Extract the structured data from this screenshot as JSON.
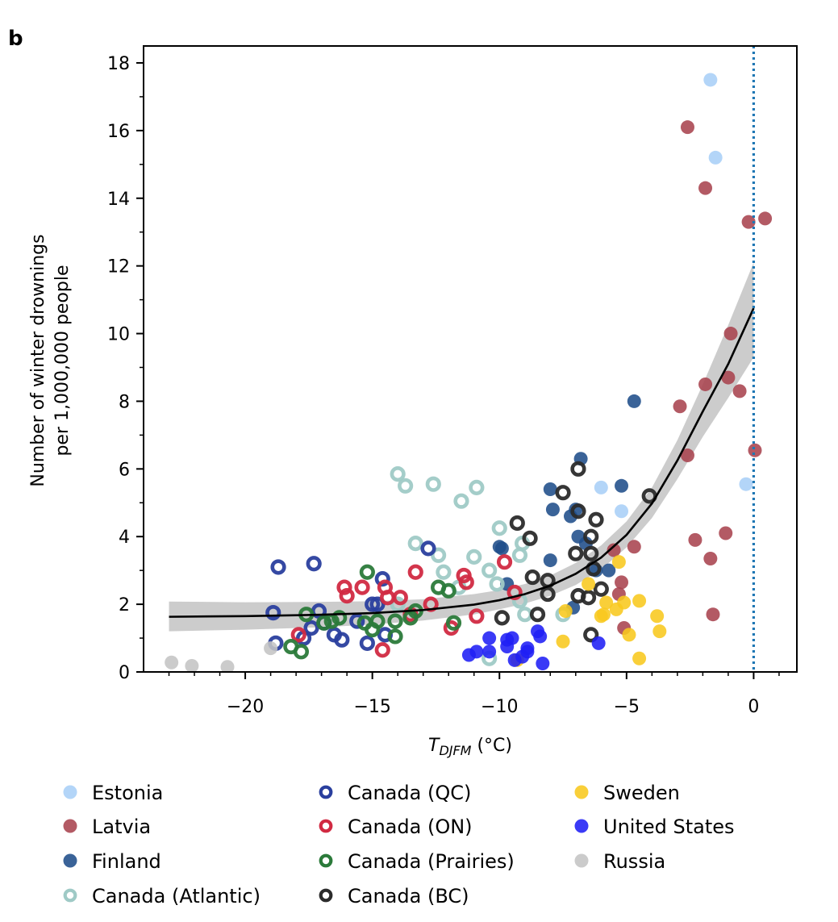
{
  "panel_label": "b",
  "chart_data": {
    "type": "scatter",
    "xlabel_main": "T",
    "xlabel_sub": "DJFM",
    "xlabel_unit": " (°C)",
    "ylabel_line1": "Number of winter drownings",
    "ylabel_line2": "per 1,000,000 people",
    "xlim": [
      -24.0,
      1.7
    ],
    "ylim": [
      0,
      18.5
    ],
    "xticks": [
      -20,
      -15,
      -10,
      -5,
      0
    ],
    "xtick_labels": [
      "−20",
      "−15",
      "−10",
      "−5",
      "0"
    ],
    "yticks": [
      0,
      2,
      4,
      6,
      8,
      10,
      12,
      14,
      16,
      18
    ],
    "ytick_labels": [
      "0",
      "2",
      "4",
      "6",
      "8",
      "10",
      "12",
      "14",
      "16",
      "18"
    ],
    "grid": false,
    "legend_position": "bottom",
    "vline": {
      "x": 0,
      "color": "#1f77b4",
      "style": "dotted"
    },
    "fit": {
      "color": "#000000",
      "band_color": "#cccccc",
      "x": [
        -23,
        -20,
        -17,
        -15,
        -13,
        -11,
        -10,
        -9,
        -8,
        -7,
        -6,
        -5,
        -4,
        -3,
        -2,
        -1,
        0
      ],
      "y": [
        1.63,
        1.65,
        1.69,
        1.74,
        1.83,
        1.99,
        2.12,
        2.3,
        2.55,
        2.9,
        3.38,
        4.05,
        4.98,
        6.25,
        7.7,
        9.1,
        10.75
      ],
      "lower": [
        1.2,
        1.25,
        1.32,
        1.4,
        1.52,
        1.7,
        1.85,
        2.02,
        2.25,
        2.57,
        3.03,
        3.68,
        4.55,
        5.7,
        6.95,
        8.1,
        9.3
      ],
      "upper": [
        2.08,
        2.06,
        2.07,
        2.09,
        2.15,
        2.3,
        2.42,
        2.6,
        2.85,
        3.22,
        3.74,
        4.45,
        5.45,
        6.85,
        8.5,
        10.25,
        12.1
      ]
    },
    "series": [
      {
        "name": "Estonia",
        "color": "#a9cff7",
        "marker": "filled",
        "points": [
          [
            -1.7,
            17.5
          ],
          [
            -1.5,
            15.2
          ],
          [
            -0.3,
            5.55
          ],
          [
            -6.0,
            5.45
          ],
          [
            -5.2,
            4.75
          ]
        ]
      },
      {
        "name": "Latvia",
        "color": "#a8434e",
        "marker": "filled",
        "points": [
          [
            -2.6,
            16.1
          ],
          [
            -1.9,
            14.3
          ],
          [
            0.45,
            13.4
          ],
          [
            -0.2,
            13.3
          ],
          [
            -0.9,
            10.0
          ],
          [
            -1.0,
            8.7
          ],
          [
            -0.55,
            8.3
          ],
          [
            -1.9,
            8.5
          ],
          [
            -2.9,
            7.85
          ],
          [
            -2.6,
            6.4
          ],
          [
            0.05,
            6.55
          ],
          [
            -2.3,
            3.9
          ],
          [
            -1.1,
            4.1
          ],
          [
            -1.7,
            3.35
          ],
          [
            -4.7,
            3.7
          ],
          [
            -1.6,
            1.7
          ],
          [
            -5.2,
            2.65
          ],
          [
            -5.3,
            2.3
          ],
          [
            -5.1,
            1.3
          ],
          [
            -5.5,
            3.6
          ]
        ]
      },
      {
        "name": "Finland",
        "color": "#1f4d8a",
        "marker": "filled",
        "points": [
          [
            -4.7,
            8.0
          ],
          [
            -6.8,
            6.3
          ],
          [
            -8.0,
            5.4
          ],
          [
            -7.9,
            4.8
          ],
          [
            -7.2,
            4.6
          ],
          [
            -6.9,
            4.0
          ],
          [
            -9.9,
            3.65
          ],
          [
            -8.0,
            3.3
          ],
          [
            -10.0,
            3.7
          ],
          [
            -6.2,
            3.0
          ],
          [
            -5.2,
            5.5
          ],
          [
            -7.0,
            4.8
          ],
          [
            -6.6,
            3.8
          ],
          [
            -9.7,
            2.6
          ],
          [
            -7.1,
            1.9
          ],
          [
            -5.7,
            3.0
          ]
        ]
      },
      {
        "name": "Canada (Atlantic)",
        "color": "#9fcac6",
        "marker": "ring",
        "points": [
          [
            -14.0,
            5.85
          ],
          [
            -13.7,
            5.5
          ],
          [
            -12.6,
            5.55
          ],
          [
            -11.5,
            5.05
          ],
          [
            -10.9,
            5.45
          ],
          [
            -13.3,
            3.8
          ],
          [
            -12.4,
            3.45
          ],
          [
            -11.0,
            3.4
          ],
          [
            -10.0,
            4.25
          ],
          [
            -9.2,
            3.45
          ],
          [
            -10.4,
            3.0
          ],
          [
            -9.1,
            3.8
          ],
          [
            -12.2,
            2.95
          ],
          [
            -11.6,
            2.5
          ],
          [
            -10.1,
            2.6
          ],
          [
            -9.0,
            1.7
          ],
          [
            -9.2,
            2.1
          ],
          [
            -10.4,
            0.4
          ],
          [
            -7.5,
            1.7
          ],
          [
            -14.0,
            2.0
          ]
        ]
      },
      {
        "name": "Canada (QC)",
        "color": "#2a3f9e",
        "marker": "ring",
        "points": [
          [
            -18.7,
            3.1
          ],
          [
            -17.3,
            3.2
          ],
          [
            -18.9,
            1.75
          ],
          [
            -18.8,
            0.85
          ],
          [
            -17.1,
            1.8
          ],
          [
            -17.7,
            1.0
          ],
          [
            -16.5,
            1.1
          ],
          [
            -16.2,
            0.95
          ],
          [
            -15.2,
            0.85
          ],
          [
            -15.6,
            1.5
          ],
          [
            -15.0,
            2.0
          ],
          [
            -14.6,
            2.75
          ],
          [
            -14.8,
            2.0
          ],
          [
            -16.9,
            1.45
          ],
          [
            -12.8,
            3.65
          ],
          [
            -14.5,
            1.1
          ],
          [
            -17.4,
            1.3
          ]
        ]
      },
      {
        "name": "Canada (ON)",
        "color": "#d12a42",
        "marker": "ring",
        "points": [
          [
            -16.1,
            2.5
          ],
          [
            -15.4,
            2.5
          ],
          [
            -14.5,
            2.5
          ],
          [
            -14.4,
            2.2
          ],
          [
            -13.9,
            2.2
          ],
          [
            -13.3,
            2.95
          ],
          [
            -11.4,
            2.85
          ],
          [
            -11.3,
            2.65
          ],
          [
            -12.7,
            2.0
          ],
          [
            -11.9,
            1.3
          ],
          [
            -10.9,
            1.65
          ],
          [
            -9.8,
            3.25
          ],
          [
            -9.4,
            2.35
          ],
          [
            -14.6,
            0.65
          ],
          [
            -16.0,
            2.25
          ],
          [
            -13.5,
            1.7
          ],
          [
            -17.9,
            1.1
          ]
        ]
      },
      {
        "name": "Canada (Prairies)",
        "color": "#2b7a3a",
        "marker": "ring",
        "points": [
          [
            -15.2,
            2.95
          ],
          [
            -12.4,
            2.5
          ],
          [
            -12.0,
            2.4
          ],
          [
            -17.6,
            1.7
          ],
          [
            -16.9,
            1.45
          ],
          [
            -16.3,
            1.6
          ],
          [
            -15.3,
            1.45
          ],
          [
            -14.8,
            1.5
          ],
          [
            -14.1,
            1.5
          ],
          [
            -13.3,
            1.8
          ],
          [
            -13.5,
            1.6
          ],
          [
            -11.8,
            1.45
          ],
          [
            -17.8,
            0.6
          ],
          [
            -18.2,
            0.75
          ],
          [
            -14.1,
            1.05
          ],
          [
            -15.0,
            1.25
          ],
          [
            -16.6,
            1.5
          ]
        ]
      },
      {
        "name": "Canada (BC)",
        "color": "#2b2b2b",
        "marker": "ring",
        "points": [
          [
            -6.9,
            6.0
          ],
          [
            -7.5,
            5.3
          ],
          [
            -4.1,
            5.2
          ],
          [
            -6.9,
            4.75
          ],
          [
            -6.2,
            4.5
          ],
          [
            -9.3,
            4.4
          ],
          [
            -8.8,
            3.95
          ],
          [
            -6.4,
            4.0
          ],
          [
            -7.0,
            3.5
          ],
          [
            -6.4,
            3.5
          ],
          [
            -6.3,
            3.05
          ],
          [
            -8.1,
            2.7
          ],
          [
            -8.7,
            2.8
          ],
          [
            -6.9,
            2.25
          ],
          [
            -6.5,
            2.2
          ],
          [
            -6.0,
            2.45
          ],
          [
            -8.1,
            2.3
          ],
          [
            -9.9,
            1.6
          ],
          [
            -8.5,
            1.7
          ],
          [
            -6.4,
            1.1
          ]
        ]
      },
      {
        "name": "Sweden",
        "color": "#f8c81e",
        "marker": "filled",
        "points": [
          [
            -5.3,
            3.25
          ],
          [
            -6.5,
            2.6
          ],
          [
            -5.8,
            2.05
          ],
          [
            -5.4,
            1.85
          ],
          [
            -5.1,
            2.05
          ],
          [
            -4.5,
            2.1
          ],
          [
            -7.4,
            1.8
          ],
          [
            -6.0,
            1.65
          ],
          [
            -5.9,
            1.7
          ],
          [
            -4.9,
            1.1
          ],
          [
            -3.8,
            1.65
          ],
          [
            -3.7,
            1.2
          ],
          [
            -4.5,
            0.4
          ],
          [
            -7.5,
            0.9
          ],
          [
            -9.3,
            0.35
          ]
        ]
      },
      {
        "name": "United States",
        "color": "#1f1ff5",
        "marker": "filled",
        "points": [
          [
            -10.4,
            1.0
          ],
          [
            -10.9,
            0.6
          ],
          [
            -10.4,
            0.6
          ],
          [
            -11.2,
            0.5
          ],
          [
            -9.7,
            0.95
          ],
          [
            -9.5,
            1.0
          ],
          [
            -9.7,
            0.75
          ],
          [
            -8.9,
            0.6
          ],
          [
            -8.9,
            0.7
          ],
          [
            -9.1,
            0.45
          ],
          [
            -8.5,
            1.2
          ],
          [
            -8.4,
            1.05
          ],
          [
            -8.3,
            0.25
          ],
          [
            -9.4,
            0.35
          ],
          [
            -6.1,
            0.85
          ]
        ]
      },
      {
        "name": "Russia",
        "color": "#c4c4c4",
        "marker": "filled",
        "points": [
          [
            -22.9,
            0.28
          ],
          [
            -22.1,
            0.18
          ],
          [
            -20.7,
            0.15
          ],
          [
            -19.0,
            0.7
          ]
        ]
      }
    ]
  }
}
